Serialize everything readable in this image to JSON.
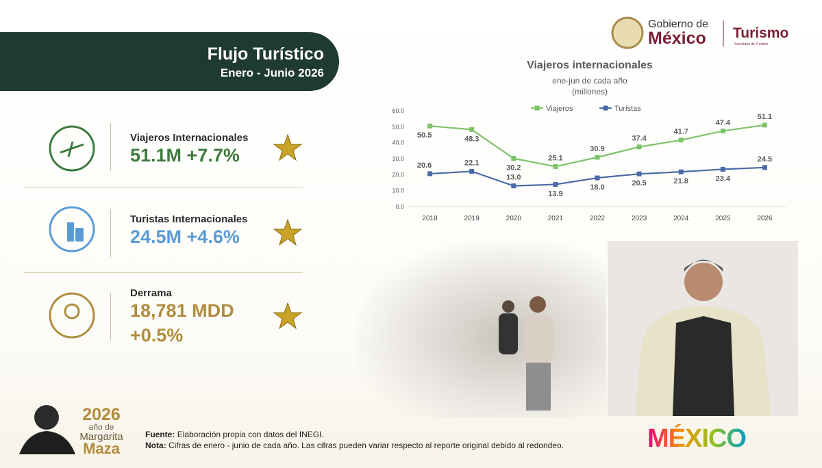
{
  "header": {
    "title": "Flujo Turístico",
    "subtitle": "Enero - Junio 2026"
  },
  "logo": {
    "gov_line1": "Gobierno de",
    "gov_line2": "México",
    "ministry": "Turismo",
    "ministry_sub": "Secretaría de Turismo"
  },
  "kpis": [
    {
      "label": "Viajeros Internacionales",
      "value": "51.1M +7.7%"
    },
    {
      "label": "Turistas Internacionales",
      "value": "24.5M +4.6%"
    },
    {
      "label": "Derrama",
      "value": "18,781 MDD",
      "change": "+0.5%"
    }
  ],
  "chart_data": {
    "type": "line",
    "title": "Viajeros internacionales",
    "subtitle": "ene-jun de cada año",
    "unit": "(millones)",
    "categories": [
      "2018",
      "2019",
      "2020",
      "2021",
      "2022",
      "2023",
      "2024",
      "2025",
      "2026"
    ],
    "series": [
      {
        "name": "Viajeros",
        "color": "#7cc36a",
        "values": [
          50.5,
          48.3,
          30.2,
          25.1,
          30.9,
          37.4,
          41.7,
          47.4,
          51.1
        ],
        "value_labels": [
          "50.5",
          "48.3",
          "30.2",
          "25.1",
          "30.9",
          "37.4",
          "41.7",
          "47.4",
          "51.1"
        ]
      },
      {
        "name": "Turistas",
        "color": "#4a6aa8",
        "values": [
          20.6,
          22.1,
          13.0,
          13.9,
          18.0,
          20.5,
          21.8,
          23.4,
          24.5
        ],
        "value_labels": [
          "20.6",
          "22.1",
          "13.0",
          "13.9",
          "18.0",
          "20.5",
          "21.8",
          "23.4",
          "24.5"
        ]
      }
    ],
    "ylim": [
      0,
      60
    ],
    "yticks": [
      {
        "value": 0,
        "label": "0.0"
      },
      {
        "value": 10,
        "label": "10.0"
      },
      {
        "value": 20,
        "label": "20.0"
      },
      {
        "value": 30,
        "label": "30.0"
      },
      {
        "value": 40,
        "label": "40.0"
      },
      {
        "value": 50,
        "label": "50.0"
      },
      {
        "value": 60,
        "label": "60.0"
      }
    ],
    "grid": false,
    "legend": "top"
  },
  "footer": {
    "source_label": "Fuente:",
    "source": "Elaboración propia con datos del INEGI.",
    "note_label": "Nota:",
    "note": "Cifras de enero - junio de cada año. Las cifras pueden variar respecto al reporte original debido al redondeo."
  },
  "badge": {
    "year": "2026",
    "line1": "año de",
    "line2": "Margarita",
    "line3": "Maza"
  },
  "brand": "MÉXICO"
}
